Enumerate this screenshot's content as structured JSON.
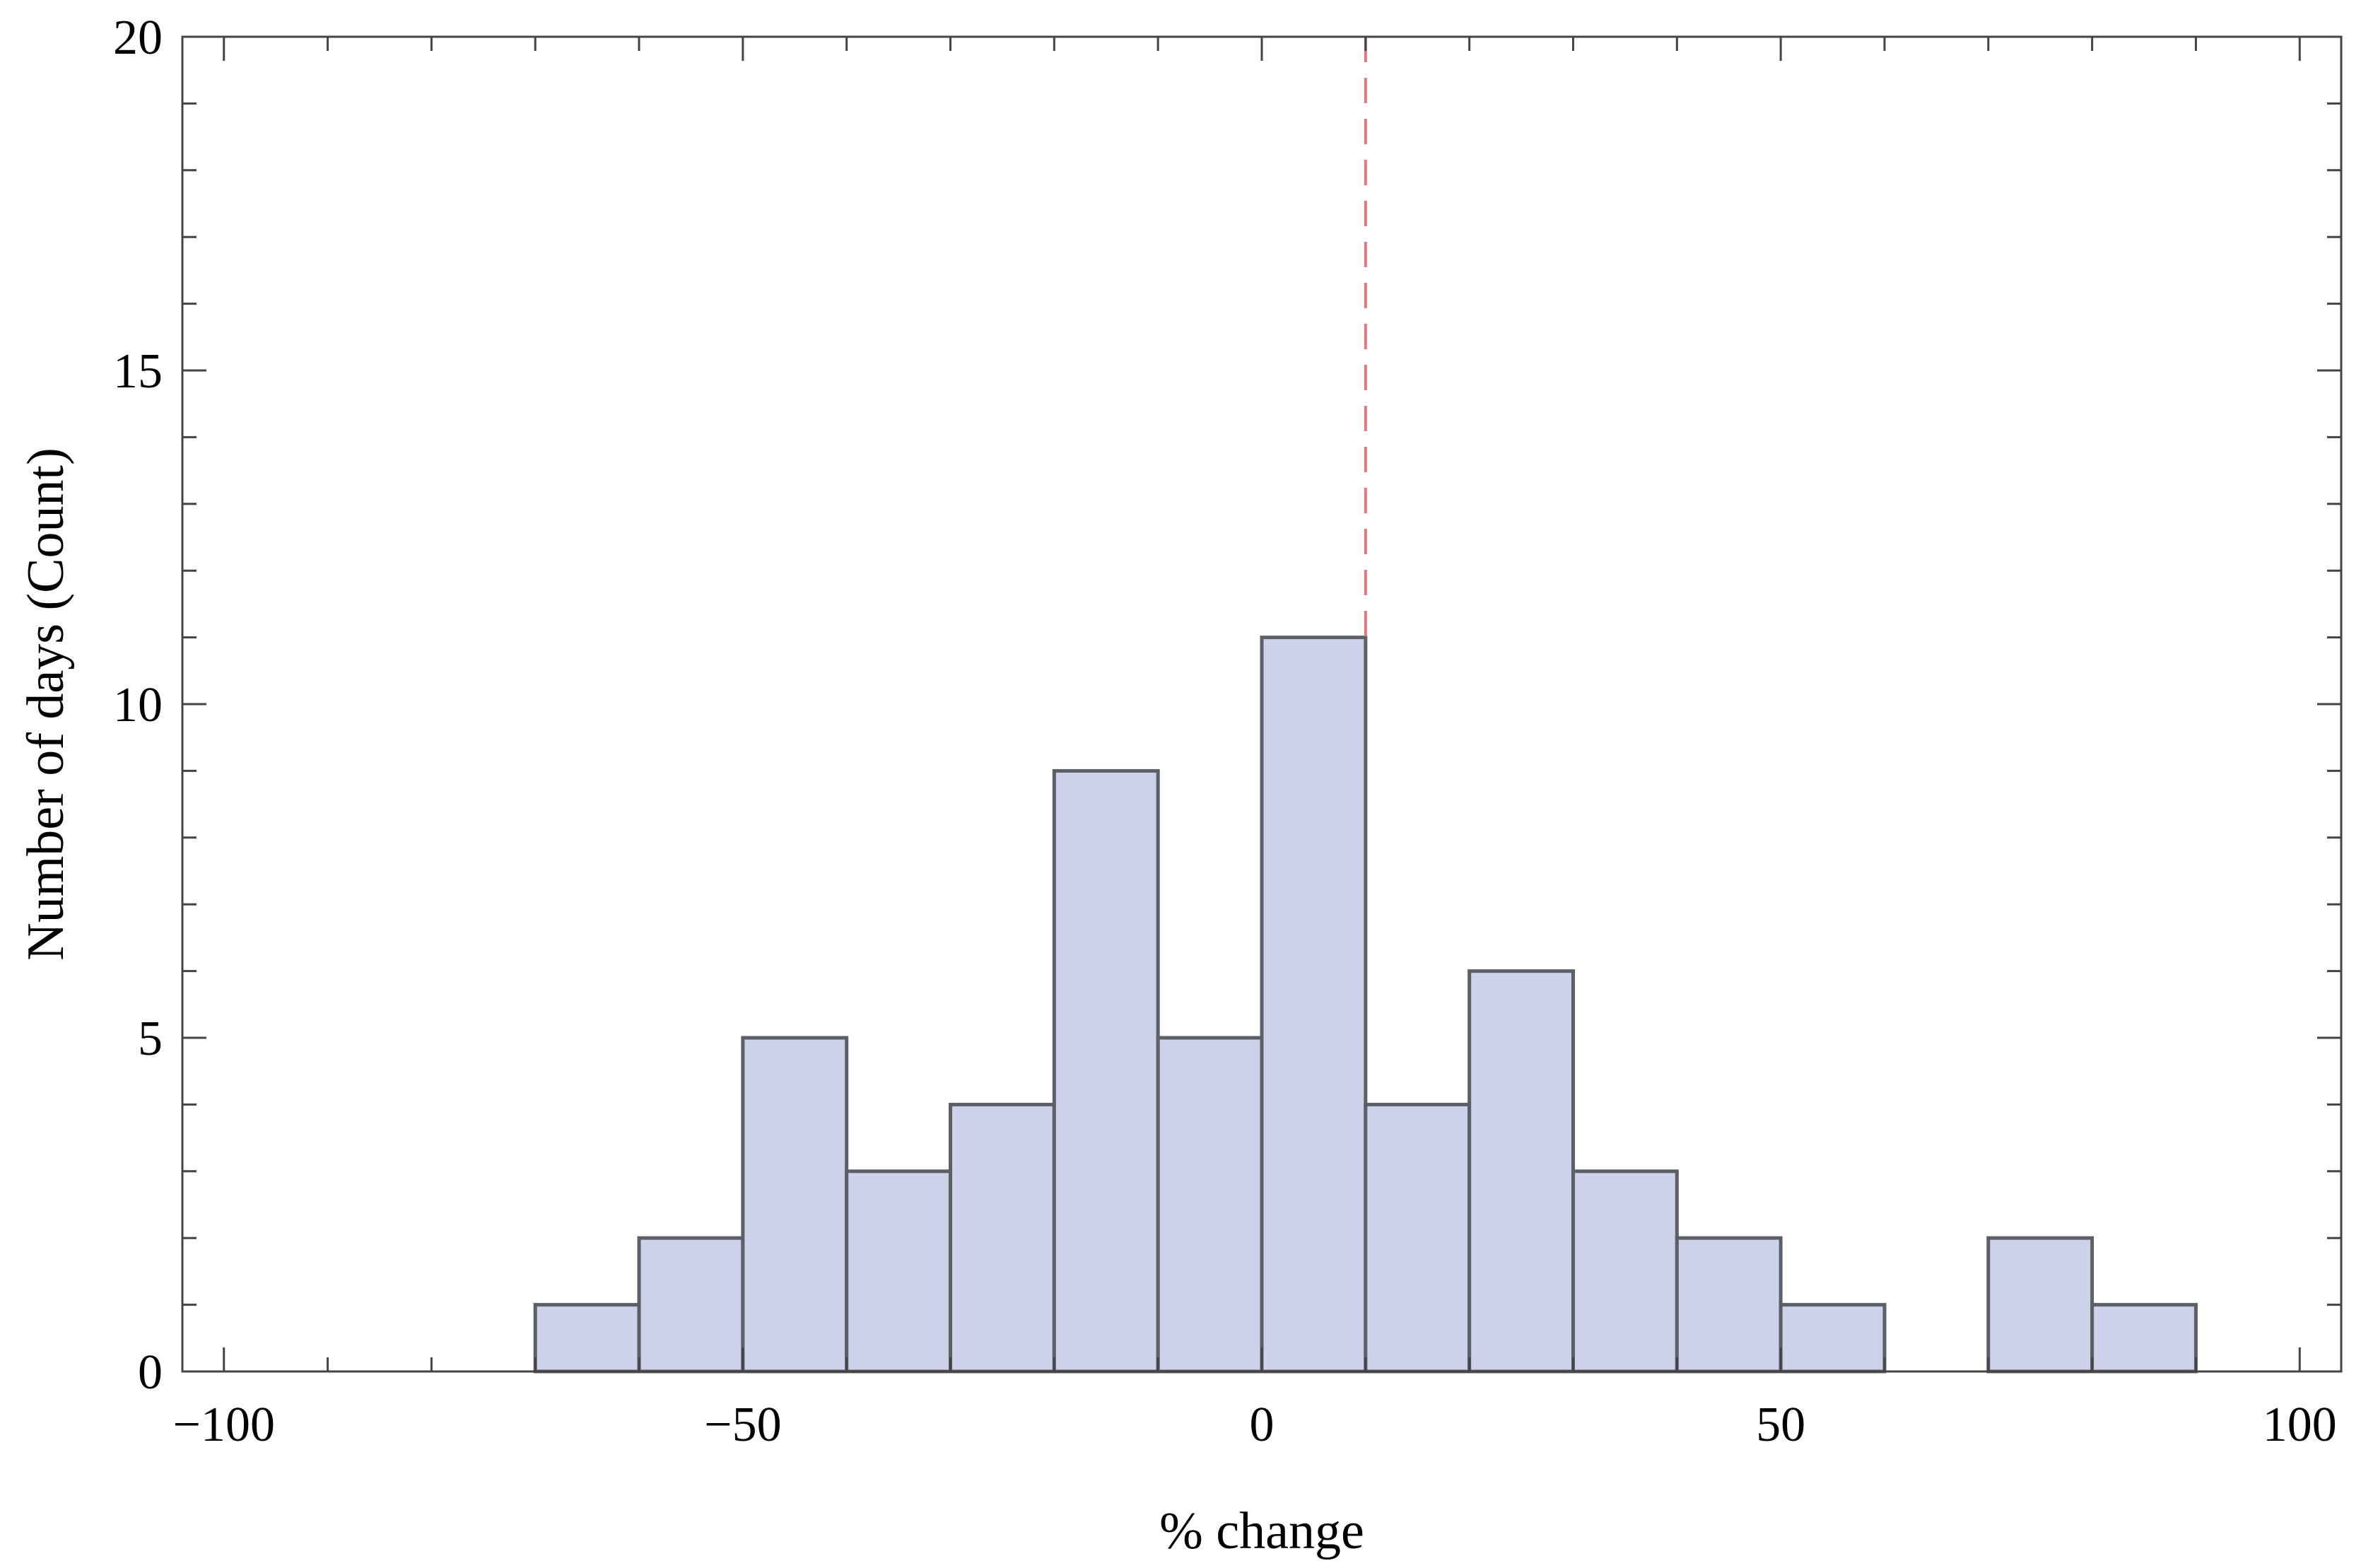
{
  "chart_data": {
    "type": "bar",
    "subtype": "histogram",
    "title": "",
    "xlabel": "% change",
    "ylabel": "Number of days (Count)",
    "xlim": [
      -104,
      104
    ],
    "ylim": [
      0,
      20
    ],
    "bin_width": 10,
    "bins": [
      {
        "start": -70,
        "end": -60,
        "count": 1
      },
      {
        "start": -60,
        "end": -50,
        "count": 2
      },
      {
        "start": -50,
        "end": -40,
        "count": 5
      },
      {
        "start": -40,
        "end": -30,
        "count": 3
      },
      {
        "start": -30,
        "end": -20,
        "count": 4
      },
      {
        "start": -20,
        "end": -10,
        "count": 9
      },
      {
        "start": -10,
        "end": 0,
        "count": 5
      },
      {
        "start": 0,
        "end": 10,
        "count": 11
      },
      {
        "start": 10,
        "end": 20,
        "count": 4
      },
      {
        "start": 20,
        "end": 30,
        "count": 6
      },
      {
        "start": 30,
        "end": 40,
        "count": 3
      },
      {
        "start": 40,
        "end": 50,
        "count": 2
      },
      {
        "start": 50,
        "end": 60,
        "count": 1
      },
      {
        "start": 60,
        "end": 70,
        "count": 0
      },
      {
        "start": 70,
        "end": 80,
        "count": 2
      },
      {
        "start": 80,
        "end": 90,
        "count": 1
      }
    ],
    "x_ticks": [
      {
        "value": -100,
        "label": "−100"
      },
      {
        "value": -50,
        "label": "−50"
      },
      {
        "value": 0,
        "label": "0"
      },
      {
        "value": 50,
        "label": "50"
      },
      {
        "value": 100,
        "label": "100"
      }
    ],
    "y_ticks": [
      {
        "value": 0,
        "label": "0"
      },
      {
        "value": 5,
        "label": "5"
      },
      {
        "value": 10,
        "label": "10"
      },
      {
        "value": 15,
        "label": "15"
      },
      {
        "value": 20,
        "label": "20"
      }
    ],
    "reference_line": {
      "x": 10,
      "style": "dashed",
      "color": "#e07a7a"
    },
    "colors": {
      "bar_fill": "#cdd1ea",
      "bar_stroke": "#5b5f66",
      "frame": "#444444"
    },
    "grid": false,
    "legend": "none"
  }
}
